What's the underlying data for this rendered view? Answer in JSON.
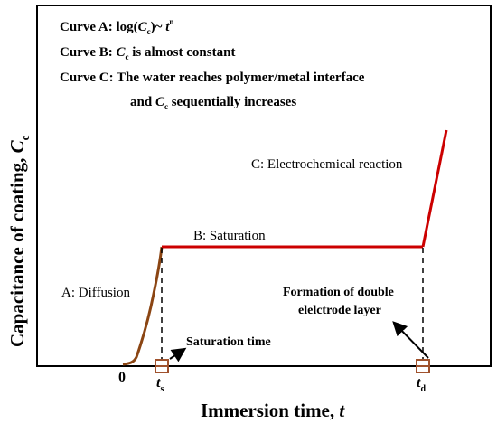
{
  "legend": {
    "curve_a_prefix": "Curve A: log(",
    "curve_a_var": "C",
    "curve_a_sub": "c",
    "curve_a_mid": ")~ ",
    "curve_a_t": "t",
    "curve_a_sup": "n",
    "curve_b_prefix": "Curve B: ",
    "curve_b_var": "C",
    "curve_b_sub": "c",
    "curve_b_rest": " is almost constant",
    "curve_c_line1": "Curve C: The water reaches polymer/metal interface",
    "curve_c_and": "and ",
    "curve_c_var": "C",
    "curve_c_sub": "c",
    "curve_c_rest": " sequentially increases"
  },
  "axes": {
    "y_label_text": "Capacitance of coating, ",
    "y_label_var": "C",
    "y_label_sub": "c",
    "x_label_text": "Immersion time, ",
    "x_label_var": "t",
    "origin": "0",
    "ts_var": "t",
    "ts_sub": "s",
    "td_var": "t",
    "td_sub": "d"
  },
  "annotations": {
    "diffusion": "A: Diffusion",
    "saturation": "B: Saturation",
    "electrochemical": "C: Electrochemical reaction",
    "saturation_time": "Saturation time",
    "formation_line1": "Formation of double",
    "formation_line2": "elelctrode layer"
  },
  "colors": {
    "curve_a": "#8b4513",
    "curve_b_c": "#cc0000",
    "marker": "#a0522d",
    "axis": "#000000"
  }
}
